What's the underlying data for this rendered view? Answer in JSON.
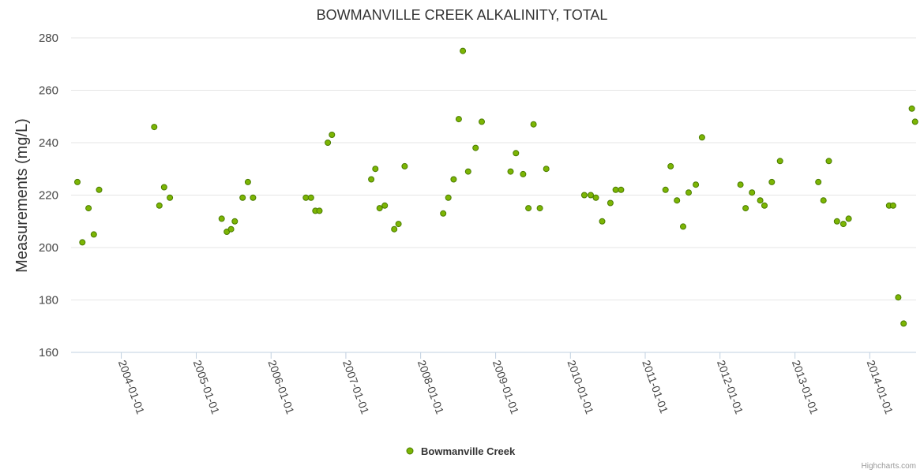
{
  "chart_data": {
    "type": "scatter",
    "title": "BOWMANVILLE CREEK ALKALINITY, TOTAL",
    "xlabel": "",
    "ylabel": "Measurements (mg/L)",
    "x_axis_type": "date",
    "xlim": [
      "2003-05-01",
      "2014-08-15"
    ],
    "ylim": [
      160,
      280
    ],
    "y_ticks": [
      160,
      180,
      200,
      220,
      240,
      260,
      280
    ],
    "x_tick_labels": [
      "2004-01-01",
      "2005-01-01",
      "2006-01-01",
      "2007-01-01",
      "2008-01-01",
      "2009-01-01",
      "2010-01-01",
      "2011-01-01",
      "2012-01-01",
      "2013-01-01",
      "2014-01-01"
    ],
    "grid": true,
    "legend": "bottom-center",
    "colors": {
      "marker_fill": "#7cb504",
      "marker_stroke": "#4a7c00"
    },
    "series": [
      {
        "name": "Bowmanville Creek",
        "points": [
          [
            "2003-06-01",
            225
          ],
          [
            "2003-06-25",
            202
          ],
          [
            "2003-07-25",
            215
          ],
          [
            "2003-08-20",
            205
          ],
          [
            "2003-09-15",
            222
          ],
          [
            "2004-06-10",
            246
          ],
          [
            "2004-07-05",
            216
          ],
          [
            "2004-07-28",
            223
          ],
          [
            "2004-08-25",
            219
          ],
          [
            "2005-05-05",
            211
          ],
          [
            "2005-05-30",
            206
          ],
          [
            "2005-06-20",
            207
          ],
          [
            "2005-07-08",
            210
          ],
          [
            "2005-08-15",
            219
          ],
          [
            "2005-09-10",
            225
          ],
          [
            "2005-10-05",
            219
          ],
          [
            "2006-06-20",
            219
          ],
          [
            "2006-07-15",
            219
          ],
          [
            "2006-08-05",
            214
          ],
          [
            "2006-08-25",
            214
          ],
          [
            "2006-10-05",
            240
          ],
          [
            "2006-10-25",
            243
          ],
          [
            "2007-05-05",
            226
          ],
          [
            "2007-05-25",
            230
          ],
          [
            "2007-06-15",
            215
          ],
          [
            "2007-07-10",
            216
          ],
          [
            "2007-08-25",
            207
          ],
          [
            "2007-09-15",
            209
          ],
          [
            "2007-10-15",
            231
          ],
          [
            "2008-04-20",
            213
          ],
          [
            "2008-05-15",
            219
          ],
          [
            "2008-06-10",
            226
          ],
          [
            "2008-07-05",
            249
          ],
          [
            "2008-07-25",
            275
          ],
          [
            "2008-08-20",
            229
          ],
          [
            "2008-09-25",
            238
          ],
          [
            "2008-10-25",
            248
          ],
          [
            "2009-03-15",
            229
          ],
          [
            "2009-04-10",
            236
          ],
          [
            "2009-05-15",
            228
          ],
          [
            "2009-06-10",
            215
          ],
          [
            "2009-07-05",
            247
          ],
          [
            "2009-08-05",
            215
          ],
          [
            "2009-09-05",
            230
          ],
          [
            "2010-03-10",
            220
          ],
          [
            "2010-04-10",
            220
          ],
          [
            "2010-05-05",
            219
          ],
          [
            "2010-06-05",
            210
          ],
          [
            "2010-07-15",
            217
          ],
          [
            "2010-08-10",
            222
          ],
          [
            "2010-09-05",
            222
          ],
          [
            "2011-04-10",
            222
          ],
          [
            "2011-05-05",
            231
          ],
          [
            "2011-06-05",
            218
          ],
          [
            "2011-07-05",
            208
          ],
          [
            "2011-08-01",
            221
          ],
          [
            "2011-09-05",
            224
          ],
          [
            "2011-10-05",
            242
          ],
          [
            "2012-04-10",
            224
          ],
          [
            "2012-05-05",
            215
          ],
          [
            "2012-06-05",
            221
          ],
          [
            "2012-07-15",
            218
          ],
          [
            "2012-08-05",
            216
          ],
          [
            "2012-09-10",
            225
          ],
          [
            "2012-10-20",
            233
          ],
          [
            "2013-04-25",
            225
          ],
          [
            "2013-05-20",
            218
          ],
          [
            "2013-06-15",
            233
          ],
          [
            "2013-07-25",
            210
          ],
          [
            "2013-08-25",
            209
          ],
          [
            "2013-09-20",
            211
          ],
          [
            "2014-04-05",
            216
          ],
          [
            "2014-04-25",
            216
          ],
          [
            "2014-05-20",
            181
          ],
          [
            "2014-06-15",
            171
          ],
          [
            "2014-07-25",
            253
          ],
          [
            "2014-08-10",
            248
          ]
        ]
      }
    ]
  },
  "credits": "Highcharts.com"
}
